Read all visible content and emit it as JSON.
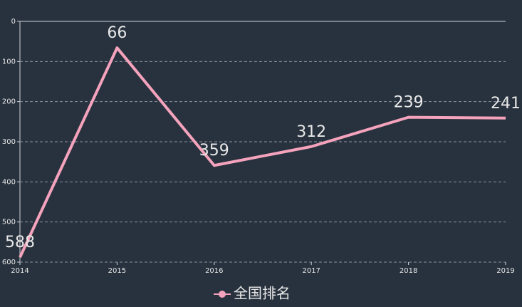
{
  "chart_data": {
    "type": "line",
    "x": [
      2014,
      2015,
      2016,
      2017,
      2018,
      2019
    ],
    "xlim": [
      2014,
      2019
    ],
    "xticks": [
      2014,
      2015,
      2016,
      2017,
      2018,
      2019
    ],
    "ylim": [
      0,
      600
    ],
    "yticks": [
      0,
      100,
      200,
      300,
      400,
      500,
      600
    ],
    "y_inverted": true,
    "grid": true,
    "legend_position": "bottom",
    "series": [
      {
        "name": "全国排名",
        "color": "#f5a3bd",
        "values": [
          588,
          66,
          359,
          312,
          239,
          241
        ]
      }
    ]
  }
}
